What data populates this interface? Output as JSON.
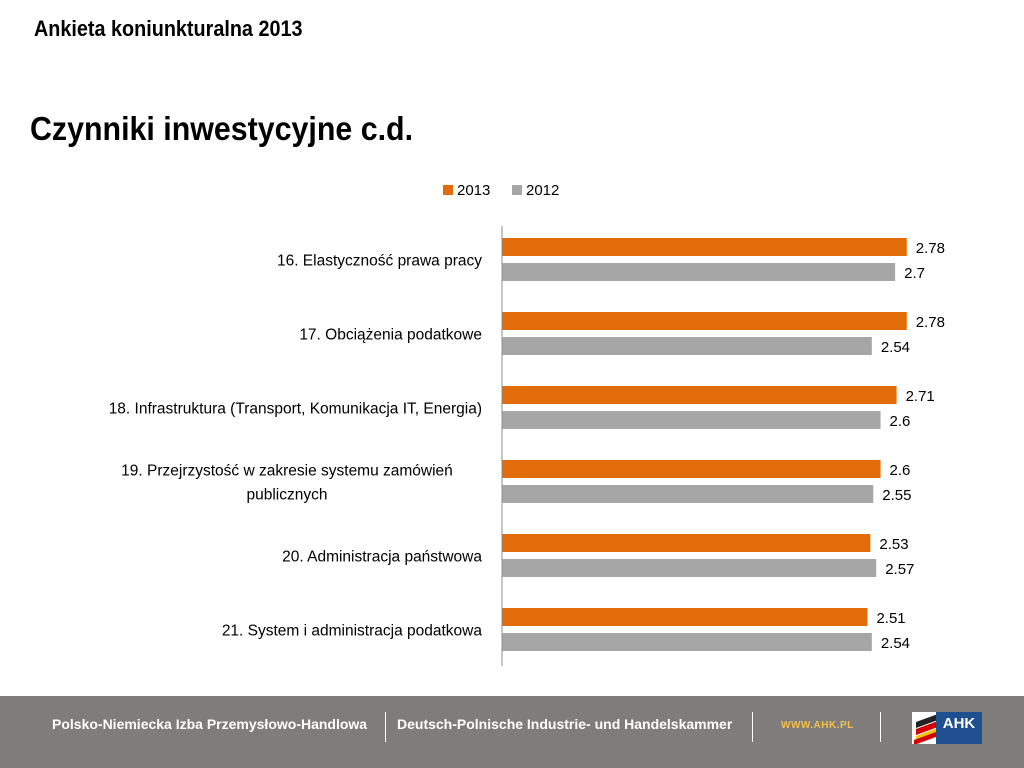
{
  "header": {
    "title": "Ankieta koniunkturalna 2013"
  },
  "slide": {
    "title": "Czynniki inwestycyjne c.d."
  },
  "chart_data": {
    "type": "bar",
    "orientation": "horizontal",
    "categories": [
      "16. Elastyczność prawa pracy",
      "17. Obciążenia podatkowe",
      "18. Infrastruktura (Transport, Komunikacja IT, Energia)",
      "19. Przejrzystość w zakresie systemu zamówień publicznych",
      "20. Administracja państwowa",
      "21. System i administracja podatkowa"
    ],
    "category_lines": [
      [
        "16. Elastyczność prawa pracy"
      ],
      [
        "17. Obciążenia podatkowe"
      ],
      [
        "18. Infrastruktura (Transport, Komunikacja IT, Energia)"
      ],
      [
        "19. Przejrzystość w zakresie systemu zamówień",
        "publicznych"
      ],
      [
        "20. Administracja państwowa"
      ],
      [
        "21. System i administracja podatkowa"
      ]
    ],
    "series": [
      {
        "name": "2013",
        "color": "#e36c0a",
        "values": [
          2.78,
          2.78,
          2.71,
          2.6,
          2.53,
          2.51
        ],
        "labels": [
          "2.78",
          "2.78",
          "2.71",
          "2.6",
          "2.53",
          "2.51"
        ]
      },
      {
        "name": "2012",
        "color": "#a6a6a6",
        "values": [
          2.7,
          2.54,
          2.6,
          2.55,
          2.57,
          2.54
        ],
        "labels": [
          "2.7",
          "2.54",
          "2.6",
          "2.55",
          "2.57",
          "2.54"
        ]
      }
    ],
    "legend_position": "top",
    "grid": false
  },
  "footer": {
    "text_pl": "Polsko-Niemiecka Izba Przemysłowo-Handlowa",
    "text_de": "Deutsch-Polnische Industrie- und Handelskammer",
    "url": "WWW.AHK.PL",
    "logo": "AHK"
  }
}
